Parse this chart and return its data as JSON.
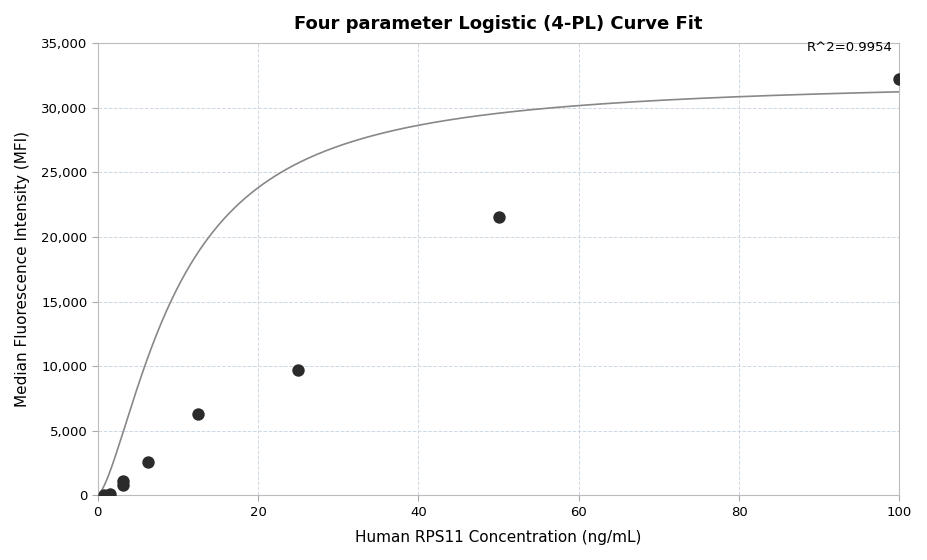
{
  "title": "Four parameter Logistic (4-PL) Curve Fit",
  "xlabel": "Human RPS11 Concentration (ng/mL)",
  "ylabel": "Median Fluorescence Intensity (MFI)",
  "scatter_x": [
    0.78,
    1.56,
    3.125,
    3.125,
    6.25,
    12.5,
    25,
    50,
    100
  ],
  "scatter_y": [
    50,
    130,
    800,
    1100,
    2600,
    6300,
    9700,
    21500,
    32200
  ],
  "r_squared": "R^2=0.9954",
  "xlim": [
    0,
    100
  ],
  "ylim": [
    0,
    35000
  ],
  "yticks": [
    0,
    5000,
    10000,
    15000,
    20000,
    25000,
    30000,
    35000
  ],
  "xticks": [
    0,
    20,
    40,
    60,
    80,
    100
  ],
  "dot_color": "#2b2b2b",
  "dot_size": 80,
  "line_color": "#888888",
  "background_color": "#ffffff",
  "grid_color": "#c8d4e0",
  "title_fontsize": 13,
  "label_fontsize": 11
}
